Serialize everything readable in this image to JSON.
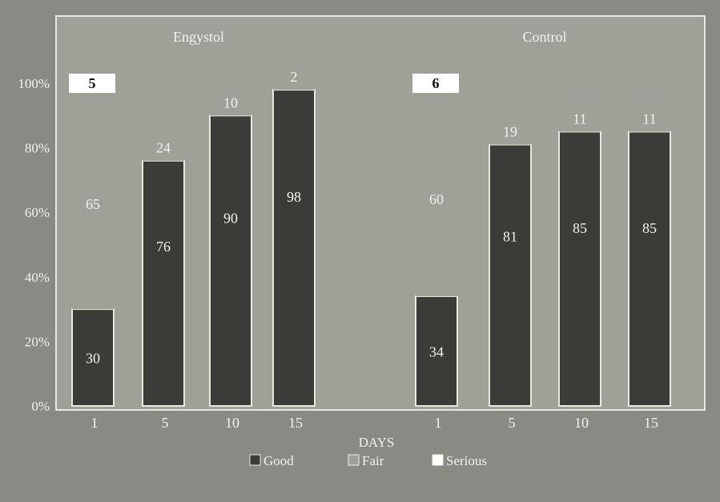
{
  "colors": {
    "background": "#8a8a84",
    "plot_area": "#a09f98",
    "good": "#3b3b38",
    "fair": "#a09f98",
    "serious": "#ffffff",
    "frame": "#e8e8e2",
    "text": "#f2f2ee",
    "text_dark": "#111111"
  },
  "chart_data": {
    "type": "bar",
    "stacked": true,
    "xlabel": "DAYS",
    "ylabel": "",
    "ylim": [
      0,
      100
    ],
    "yticks": [
      "0%",
      "20%",
      "40%",
      "60%",
      "80%",
      "100%"
    ],
    "grid": false,
    "legend_position": "bottom",
    "groups": [
      {
        "label": "Engystol",
        "categories": [
          "1",
          "5",
          "10",
          "15"
        ]
      },
      {
        "label": "Control",
        "categories": [
          "1",
          "5",
          "10",
          "15"
        ]
      }
    ],
    "series": [
      {
        "name": "Good",
        "values": [
          30,
          76,
          90,
          98,
          34,
          81,
          85,
          85
        ]
      },
      {
        "name": "Fair",
        "values": [
          65,
          24,
          10,
          2,
          60,
          19,
          11,
          11
        ]
      },
      {
        "name": "Serious",
        "values": [
          5,
          0,
          0,
          0,
          6,
          0,
          0,
          0
        ]
      }
    ]
  }
}
